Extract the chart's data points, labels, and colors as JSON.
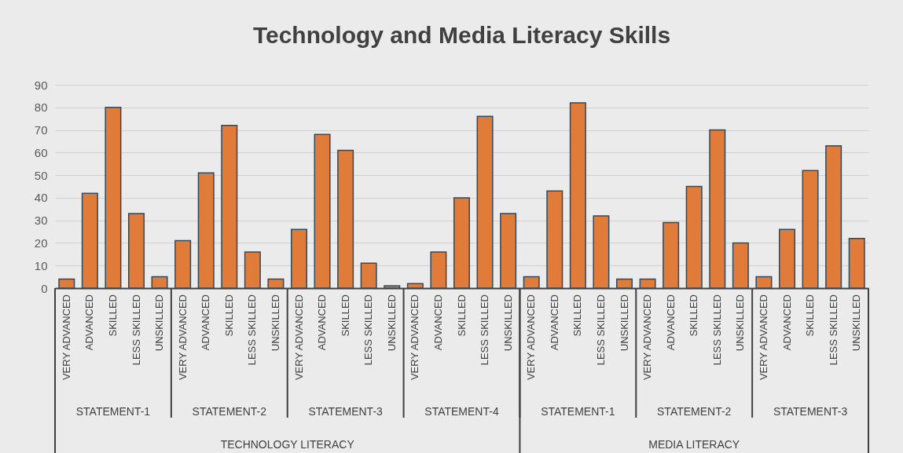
{
  "chart_data": {
    "type": "bar",
    "title": "Technology and Media Literacy Skills",
    "categories": [
      "VERY ADVANCED",
      "ADVANCED",
      "SKILLED",
      "LESS SKILLED",
      "UNSKILLED",
      "VERY ADVANCED",
      "ADVANCED",
      "SKILLED",
      "LESS SKILLED",
      "UNSKILLED",
      "VERY ADVANCED",
      "ADVANCED",
      "SKILLED",
      "LESS SKILLED",
      "UNSKILLED",
      "VERY ADVANCED",
      "ADVANCED",
      "SKILLED",
      "LESS SKILLED",
      "UNSKILLED",
      "VERY ADVANCED",
      "ADVANCED",
      "SKILLED",
      "LESS SKILLED",
      "UNSKILLED",
      "VERY ADVANCED",
      "ADVANCED",
      "SKILLED",
      "LESS SKILLED",
      "UNSKILLED",
      "VERY ADVANCED",
      "ADVANCED",
      "SKILLED",
      "LESS SKILLED",
      "UNSKILLED"
    ],
    "series": [
      {
        "color": "#e07b39",
        "values": [
          4,
          42,
          80,
          33,
          5,
          21,
          51,
          72,
          16,
          4,
          26,
          68,
          61,
          11,
          1,
          2,
          16,
          40,
          76,
          33,
          5,
          43,
          82,
          32,
          4,
          4,
          29,
          45,
          70,
          20,
          5,
          26,
          52,
          63,
          22
        ]
      }
    ],
    "ylim": [
      0,
      90
    ],
    "yticks": [
      0,
      10,
      20,
      30,
      40,
      50,
      60,
      70,
      80,
      90
    ],
    "grid": "y",
    "annotations": [
      "STATEMENT-1",
      "STATEMENT-2",
      "STATEMENT-3",
      "STATEMENT-4",
      "STATEMENT-1",
      "STATEMENT-2",
      "STATEMENT-3",
      "TECHNOLOGY LITERACY",
      "MEDIA LITERACY"
    ]
  }
}
